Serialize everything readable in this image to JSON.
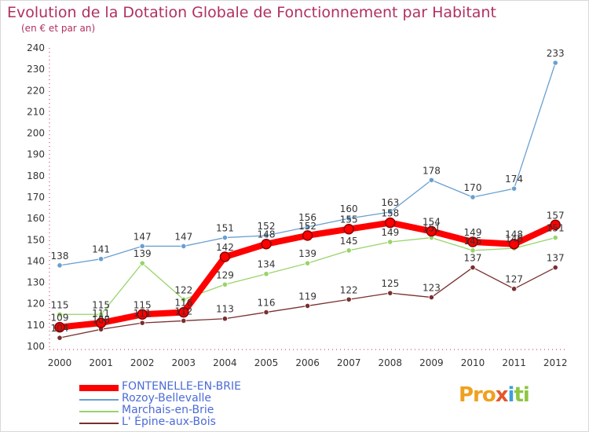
{
  "chart_data": {
    "type": "line",
    "title": "Evolution de la Dotation Globale de Fonctionnement par Habitant",
    "subtitle": "(en € et par an)",
    "xlabel": "",
    "ylabel": "",
    "ylim": [
      100,
      240
    ],
    "yticks": [
      100,
      110,
      120,
      130,
      140,
      150,
      160,
      170,
      180,
      190,
      200,
      210,
      220,
      230,
      240
    ],
    "x": [
      "2000",
      "2001",
      "2002",
      "2003",
      "2004",
      "2005",
      "2006",
      "2007",
      "2008",
      "2009",
      "2010",
      "2011",
      "2012"
    ],
    "grid": false,
    "legend_position": "bottom-left",
    "series": [
      {
        "name": "FONTENELLE-EN-BRIE",
        "color": "#ff0000",
        "values": [
          109,
          111,
          115,
          116,
          142,
          148,
          152,
          155,
          158,
          154,
          149,
          148,
          157
        ]
      },
      {
        "name": "Rozoy-Bellevalle",
        "color": "#6a9fd0",
        "values": [
          138,
          141,
          147,
          147,
          151,
          152,
          156,
          160,
          163,
          178,
          170,
          174,
          233
        ]
      },
      {
        "name": "Marchais-en-Brie",
        "color": "#98d468",
        "values": [
          115,
          115,
          139,
          122,
          129,
          134,
          139,
          145,
          149,
          151,
          145,
          146,
          151
        ]
      },
      {
        "name": "L' Épine-aux-Bois",
        "color": "#7a2f2f",
        "values": [
          104,
          108,
          111,
          112,
          113,
          116,
          119,
          122,
          125,
          123,
          137,
          127,
          137
        ]
      }
    ]
  },
  "logo": {
    "p1": "Pro",
    "p2": "x",
    "p3": "i",
    "p4": "ti"
  }
}
